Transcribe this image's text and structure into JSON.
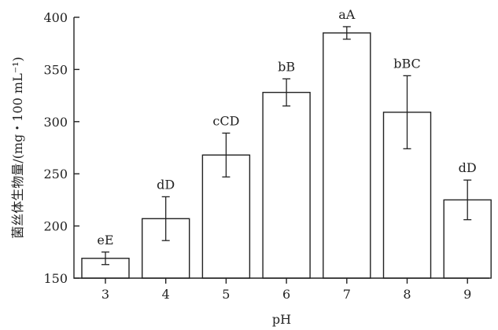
{
  "chart_data": {
    "type": "bar",
    "categories": [
      "3",
      "4",
      "5",
      "6",
      "7",
      "8",
      "9"
    ],
    "values": [
      169,
      207,
      268,
      328,
      385,
      309,
      225
    ],
    "errors": [
      6,
      21,
      21,
      13,
      6,
      35,
      19
    ],
    "sig_labels": [
      "eE",
      "dD",
      "cCD",
      "bB",
      "aA",
      "bBC",
      "dD"
    ],
    "xlabel": "pH",
    "ylabel": "菌丝体生物量/(mg・100 mL⁻¹)",
    "ylim": [
      150,
      400
    ],
    "yticks": [
      "150",
      "200",
      "250",
      "300",
      "350",
      "400"
    ],
    "grid": false,
    "colors": {
      "bar_fill": "#ffffff",
      "bar_stroke": "#222222"
    }
  }
}
